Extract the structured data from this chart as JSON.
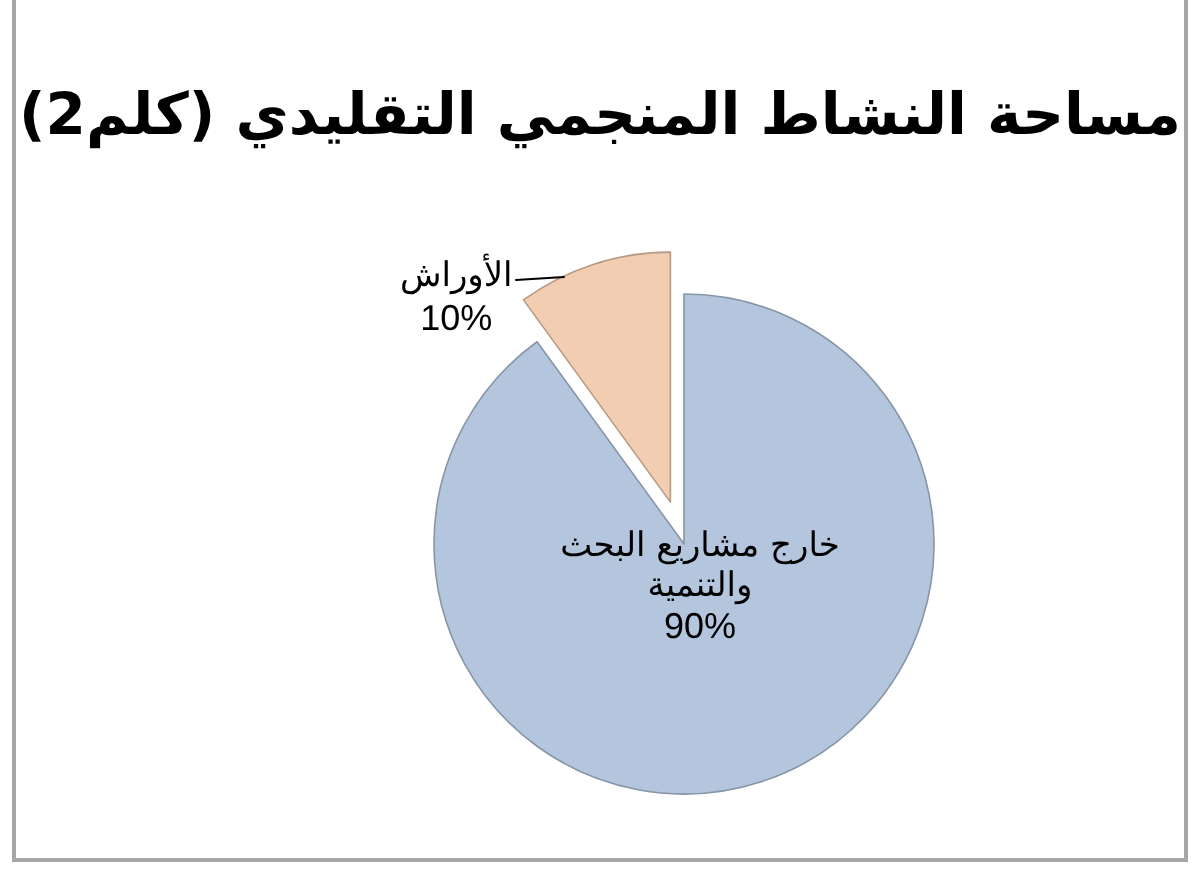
{
  "chart_data": {
    "type": "pie",
    "title": "مساحة النشاط المنجمي التقليدي (كلم2)",
    "categories": [
      "خارج مشاريع البحث والتنمية",
      "الأوراش"
    ],
    "values": [
      90,
      10
    ],
    "colors": [
      "#b4c6de",
      "#f2cdb2"
    ],
    "value_labels": [
      "90%",
      "10%"
    ]
  }
}
